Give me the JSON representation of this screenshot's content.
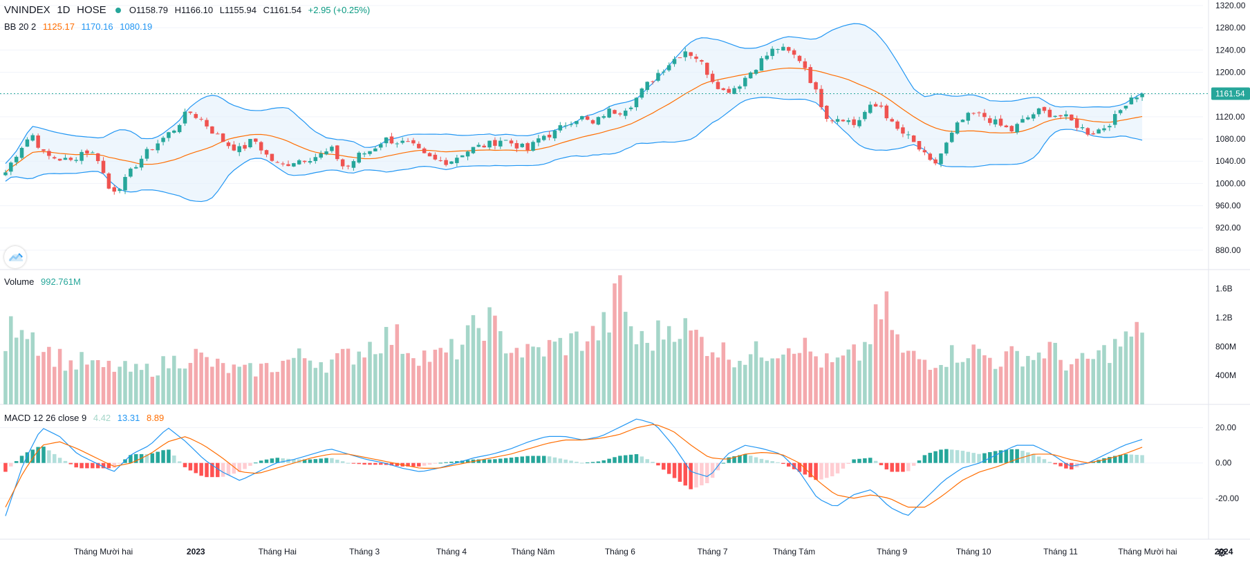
{
  "header": {
    "symbol": "VNINDEX",
    "interval": "1D",
    "exchange": "HOSE",
    "open": "O1158.79",
    "high": "H1166.10",
    "low": "L1155.94",
    "close": "C1161.54",
    "change": "+2.95 (+0.25%)"
  },
  "bb_legend": {
    "name": "BB 20 2",
    "basis": "1125.17",
    "upper": "1170.16",
    "lower": "1080.19"
  },
  "volume_legend": {
    "name": "Volume",
    "value": "992.761M"
  },
  "macd_legend": {
    "name": "MACD 12 26 close 9",
    "hist": "4.42",
    "macd": "13.31",
    "signal": "8.89"
  },
  "price_tag": "1161.54",
  "settings_icon": "gear-icon",
  "logo_icon": "tradingview-cloud-icon",
  "colors": {
    "up": "#26a69a",
    "down": "#ef5350",
    "basis": "#ff6d00",
    "band": "#2196f3",
    "band_fill": "#e3f0fb",
    "vol_up": "#a5d6c9",
    "vol_down": "#f4a9ad",
    "macd": "#2196f3",
    "signal": "#ff6d00"
  },
  "chart_data": [
    {
      "type": "candlestick",
      "title": "VNINDEX 1D HOSE",
      "indicator": "BB 20 2",
      "ylim": [
        860,
        1320
      ],
      "yticks": [
        "880.00",
        "920.00",
        "960.00",
        "1000.00",
        "1040.00",
        "1080.00",
        "1120.00",
        "1160.00",
        "1200.00",
        "1240.00",
        "1280.00",
        "1320.00"
      ],
      "xticks": [
        "Tháng Mười hai",
        "2023",
        "Tháng Hai",
        "Tháng 3",
        "Tháng 4",
        "Tháng Năm",
        "Tháng 6",
        "Tháng 7",
        "Tháng Tám",
        "Tháng 9",
        "Tháng 10",
        "Tháng 11",
        "Tháng Mười hai",
        "2024"
      ],
      "close_anchors": [
        1020,
        1060,
        1090,
        1050,
        1045,
        1040,
        1060,
        1050,
        985,
        1000,
        1035,
        1060,
        1080,
        1100,
        1130,
        1115,
        1090,
        1070,
        1060,
        1080,
        1050,
        1030,
        1040,
        1045,
        1050,
        1060,
        1025,
        1050,
        1060,
        1080,
        1075,
        1070,
        1050,
        1040,
        1040,
        1055,
        1065,
        1070,
        1080,
        1070,
        1060,
        1085,
        1090,
        1110,
        1120,
        1105,
        1130,
        1130,
        1145,
        1175,
        1200,
        1220,
        1240,
        1225,
        1190,
        1165,
        1175,
        1200,
        1225,
        1245,
        1235,
        1220,
        1165,
        1115,
        1120,
        1105,
        1135,
        1140,
        1100,
        1085,
        1060,
        1030,
        1070,
        1110,
        1125,
        1120,
        1105,
        1095,
        1115,
        1130,
        1125,
        1120,
        1105,
        1090,
        1100,
        1120,
        1155,
        1161.54
      ],
      "last_close": 1161.54,
      "grid": true
    },
    {
      "type": "bar",
      "title": "Volume",
      "ylim": [
        0,
        1750
      ],
      "unit": "M",
      "yticks": [
        "400M",
        "800M",
        "1.2B",
        "1.6B"
      ],
      "last_value": 992.761,
      "level_anchors": [
        850,
        1250,
        1000,
        750,
        650,
        550,
        600,
        500,
        520,
        480,
        450,
        500,
        560,
        620,
        700,
        600,
        520,
        480,
        450,
        500,
        520,
        600,
        650,
        650,
        580,
        620,
        700,
        800,
        900,
        950,
        800,
        700,
        650,
        700,
        800,
        1000,
        1200,
        900,
        800,
        700,
        750,
        800,
        850,
        900,
        950,
        1100,
        1600,
        900,
        850,
        1000,
        1150,
        1000,
        900,
        800,
        700,
        650,
        700,
        750,
        800,
        900,
        750,
        600,
        550,
        650,
        700,
        1100,
        1300,
        700,
        650,
        600,
        650,
        700,
        750,
        700,
        600,
        650,
        700,
        650,
        800,
        600,
        550,
        600,
        700,
        800,
        900,
        992.761
      ]
    },
    {
      "type": "line",
      "title": "MACD 12 26 close 9",
      "ylim": [
        -40,
        30
      ],
      "yticks": [
        "-20.00",
        "0.00",
        "20.00"
      ],
      "series": [
        {
          "name": "MACD",
          "last": 13.31
        },
        {
          "name": "Signal",
          "last": 8.89
        },
        {
          "name": "Histogram",
          "last": 4.42
        }
      ],
      "macd_anchors": [
        -30,
        0,
        20,
        15,
        5,
        0,
        -5,
        5,
        10,
        20,
        12,
        2,
        -5,
        -10,
        -5,
        0,
        2,
        5,
        8,
        5,
        2,
        0,
        -3,
        -5,
        -3,
        0,
        3,
        5,
        8,
        12,
        15,
        15,
        13,
        15,
        20,
        25,
        22,
        10,
        -5,
        -8,
        5,
        10,
        8,
        5,
        -5,
        -20,
        -25,
        -18,
        -15,
        -25,
        -30,
        -20,
        -10,
        -3,
        0,
        5,
        10,
        10,
        5,
        -2,
        0,
        5,
        10,
        13.31
      ],
      "signal_anchors": [
        -25,
        -5,
        10,
        12,
        8,
        3,
        -2,
        0,
        5,
        12,
        15,
        10,
        3,
        -5,
        -6,
        -3,
        0,
        3,
        5,
        5,
        3,
        1,
        -1,
        -3,
        -3,
        -1,
        1,
        3,
        5,
        8,
        11,
        13,
        13,
        14,
        16,
        20,
        22,
        18,
        10,
        3,
        2,
        5,
        6,
        5,
        0,
        -10,
        -18,
        -20,
        -18,
        -20,
        -25,
        -25,
        -18,
        -10,
        -5,
        -2,
        2,
        5,
        5,
        2,
        0,
        2,
        5,
        8.89
      ]
    }
  ]
}
